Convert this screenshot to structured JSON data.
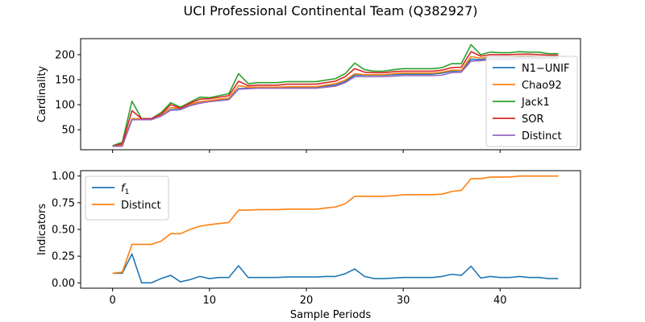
{
  "figure": {
    "title": "UCI Professional Continental Team (Q382927)"
  },
  "chart_data": [
    {
      "type": "line",
      "ylabel": "Cardinality",
      "xlabel": "",
      "xlim": [
        -3.3,
        48.3
      ],
      "ylim": [
        10,
        232
      ],
      "xticks": [
        0,
        10,
        20,
        30,
        40
      ],
      "xtick_labels_visible": false,
      "yticks": [
        50,
        100,
        150,
        200
      ],
      "legend_loc": "lower right",
      "grid": false,
      "x": [
        0,
        1,
        2,
        3,
        4,
        5,
        6,
        7,
        8,
        9,
        10,
        11,
        12,
        13,
        14,
        15,
        16,
        17,
        18,
        19,
        20,
        21,
        22,
        23,
        24,
        25,
        26,
        27,
        28,
        29,
        30,
        31,
        32,
        33,
        34,
        35,
        36,
        37,
        38,
        39,
        40,
        41,
        42,
        43,
        44,
        45,
        46
      ],
      "series": [
        {
          "name": "N1−UNIF",
          "color": "#1f77b4",
          "values": [
            17,
            18,
            70,
            71,
            71,
            77,
            90,
            91,
            99,
            103,
            107,
            110,
            111,
            132,
            133,
            134,
            134,
            134,
            134,
            134,
            134,
            134,
            137,
            139,
            146,
            159,
            159,
            159,
            159,
            160,
            161,
            161,
            161,
            161,
            163,
            167,
            168,
            191,
            190,
            193,
            193,
            193,
            194,
            194,
            194,
            194,
            194
          ]
        },
        {
          "name": "Chao92",
          "color": "#ff7f0e",
          "values": [
            17,
            20,
            72,
            72,
            72,
            80,
            94,
            93,
            101,
            106,
            108,
            111,
            113,
            138,
            135,
            135,
            135,
            135,
            136,
            136,
            136,
            136,
            139,
            142,
            149,
            162,
            160,
            160,
            160,
            162,
            163,
            163,
            163,
            163,
            165,
            169,
            169,
            196,
            193,
            196,
            196,
            196,
            197,
            197,
            196,
            196,
            196
          ]
        },
        {
          "name": "Jack1",
          "color": "#2ca02c",
          "values": [
            18,
            25,
            107,
            72,
            72,
            84,
            104,
            95,
            105,
            115,
            114,
            118,
            122,
            162,
            142,
            144,
            144,
            144,
            146,
            146,
            146,
            146,
            149,
            152,
            162,
            183,
            170,
            167,
            167,
            170,
            172,
            172,
            172,
            172,
            174,
            182,
            182,
            220,
            200,
            205,
            204,
            204,
            206,
            205,
            205,
            202,
            202
          ]
        },
        {
          "name": "SOR",
          "color": "#d62728",
          "values": [
            17,
            22,
            88,
            72,
            72,
            81,
            100,
            93,
            103,
            111,
            112,
            115,
            118,
            147,
            138,
            139,
            139,
            139,
            141,
            141,
            141,
            141,
            144,
            147,
            156,
            172,
            165,
            164,
            164,
            166,
            167,
            167,
            167,
            167,
            169,
            174,
            175,
            206,
            197,
            200,
            200,
            200,
            201,
            201,
            200,
            199,
            199
          ]
        },
        {
          "name": "Distinct",
          "color": "#9467bd",
          "values": [
            17,
            17,
            70,
            70,
            70,
            77,
            89,
            90,
            98,
            103,
            106,
            108,
            110,
            131,
            132,
            133,
            133,
            133,
            133,
            133,
            133,
            133,
            135,
            137,
            144,
            156,
            156,
            156,
            156,
            157,
            158,
            158,
            158,
            158,
            159,
            164,
            165,
            187,
            188,
            190,
            190,
            190,
            192,
            192,
            192,
            192,
            192
          ]
        }
      ]
    },
    {
      "type": "line",
      "ylabel": "Indicators",
      "xlabel": "Sample Periods",
      "xlim": [
        -3.3,
        48.3
      ],
      "ylim": [
        -0.05,
        1.05
      ],
      "xticks": [
        0,
        10,
        20,
        30,
        40
      ],
      "yticks": [
        0.0,
        0.25,
        0.5,
        0.75,
        1.0
      ],
      "ytick_labels": [
        "0.00",
        "0.25",
        "0.50",
        "0.75",
        "1.00"
      ],
      "legend_loc": "upper left",
      "grid": false,
      "x": [
        0,
        1,
        2,
        3,
        4,
        5,
        6,
        7,
        8,
        9,
        10,
        11,
        12,
        13,
        14,
        15,
        16,
        17,
        18,
        19,
        20,
        21,
        22,
        23,
        24,
        25,
        26,
        27,
        28,
        29,
        30,
        31,
        32,
        33,
        34,
        35,
        36,
        37,
        38,
        39,
        40,
        41,
        42,
        43,
        44,
        45,
        46
      ],
      "series": [
        {
          "name": "f₁",
          "label_main": "f",
          "label_sub": "1",
          "color": "#1f77b4",
          "values": [
            0.09,
            0.09,
            0.27,
            0.0,
            0.0,
            0.04,
            0.07,
            0.01,
            0.03,
            0.06,
            0.04,
            0.05,
            0.05,
            0.16,
            0.05,
            0.05,
            0.05,
            0.05,
            0.055,
            0.055,
            0.055,
            0.055,
            0.06,
            0.06,
            0.085,
            0.13,
            0.06,
            0.04,
            0.04,
            0.045,
            0.05,
            0.05,
            0.05,
            0.05,
            0.06,
            0.08,
            0.07,
            0.155,
            0.045,
            0.06,
            0.05,
            0.05,
            0.06,
            0.05,
            0.05,
            0.04,
            0.04
          ]
        },
        {
          "name": "Distinct",
          "color": "#ff7f0e",
          "values": [
            0.09,
            0.1,
            0.36,
            0.36,
            0.36,
            0.39,
            0.46,
            0.46,
            0.5,
            0.53,
            0.545,
            0.555,
            0.565,
            0.68,
            0.68,
            0.685,
            0.685,
            0.685,
            0.69,
            0.69,
            0.69,
            0.69,
            0.7,
            0.71,
            0.74,
            0.81,
            0.81,
            0.81,
            0.81,
            0.815,
            0.825,
            0.825,
            0.825,
            0.825,
            0.83,
            0.855,
            0.865,
            0.975,
            0.975,
            0.99,
            0.99,
            0.99,
            1.0,
            1.0,
            1.0,
            1.0,
            1.0
          ]
        }
      ]
    }
  ]
}
